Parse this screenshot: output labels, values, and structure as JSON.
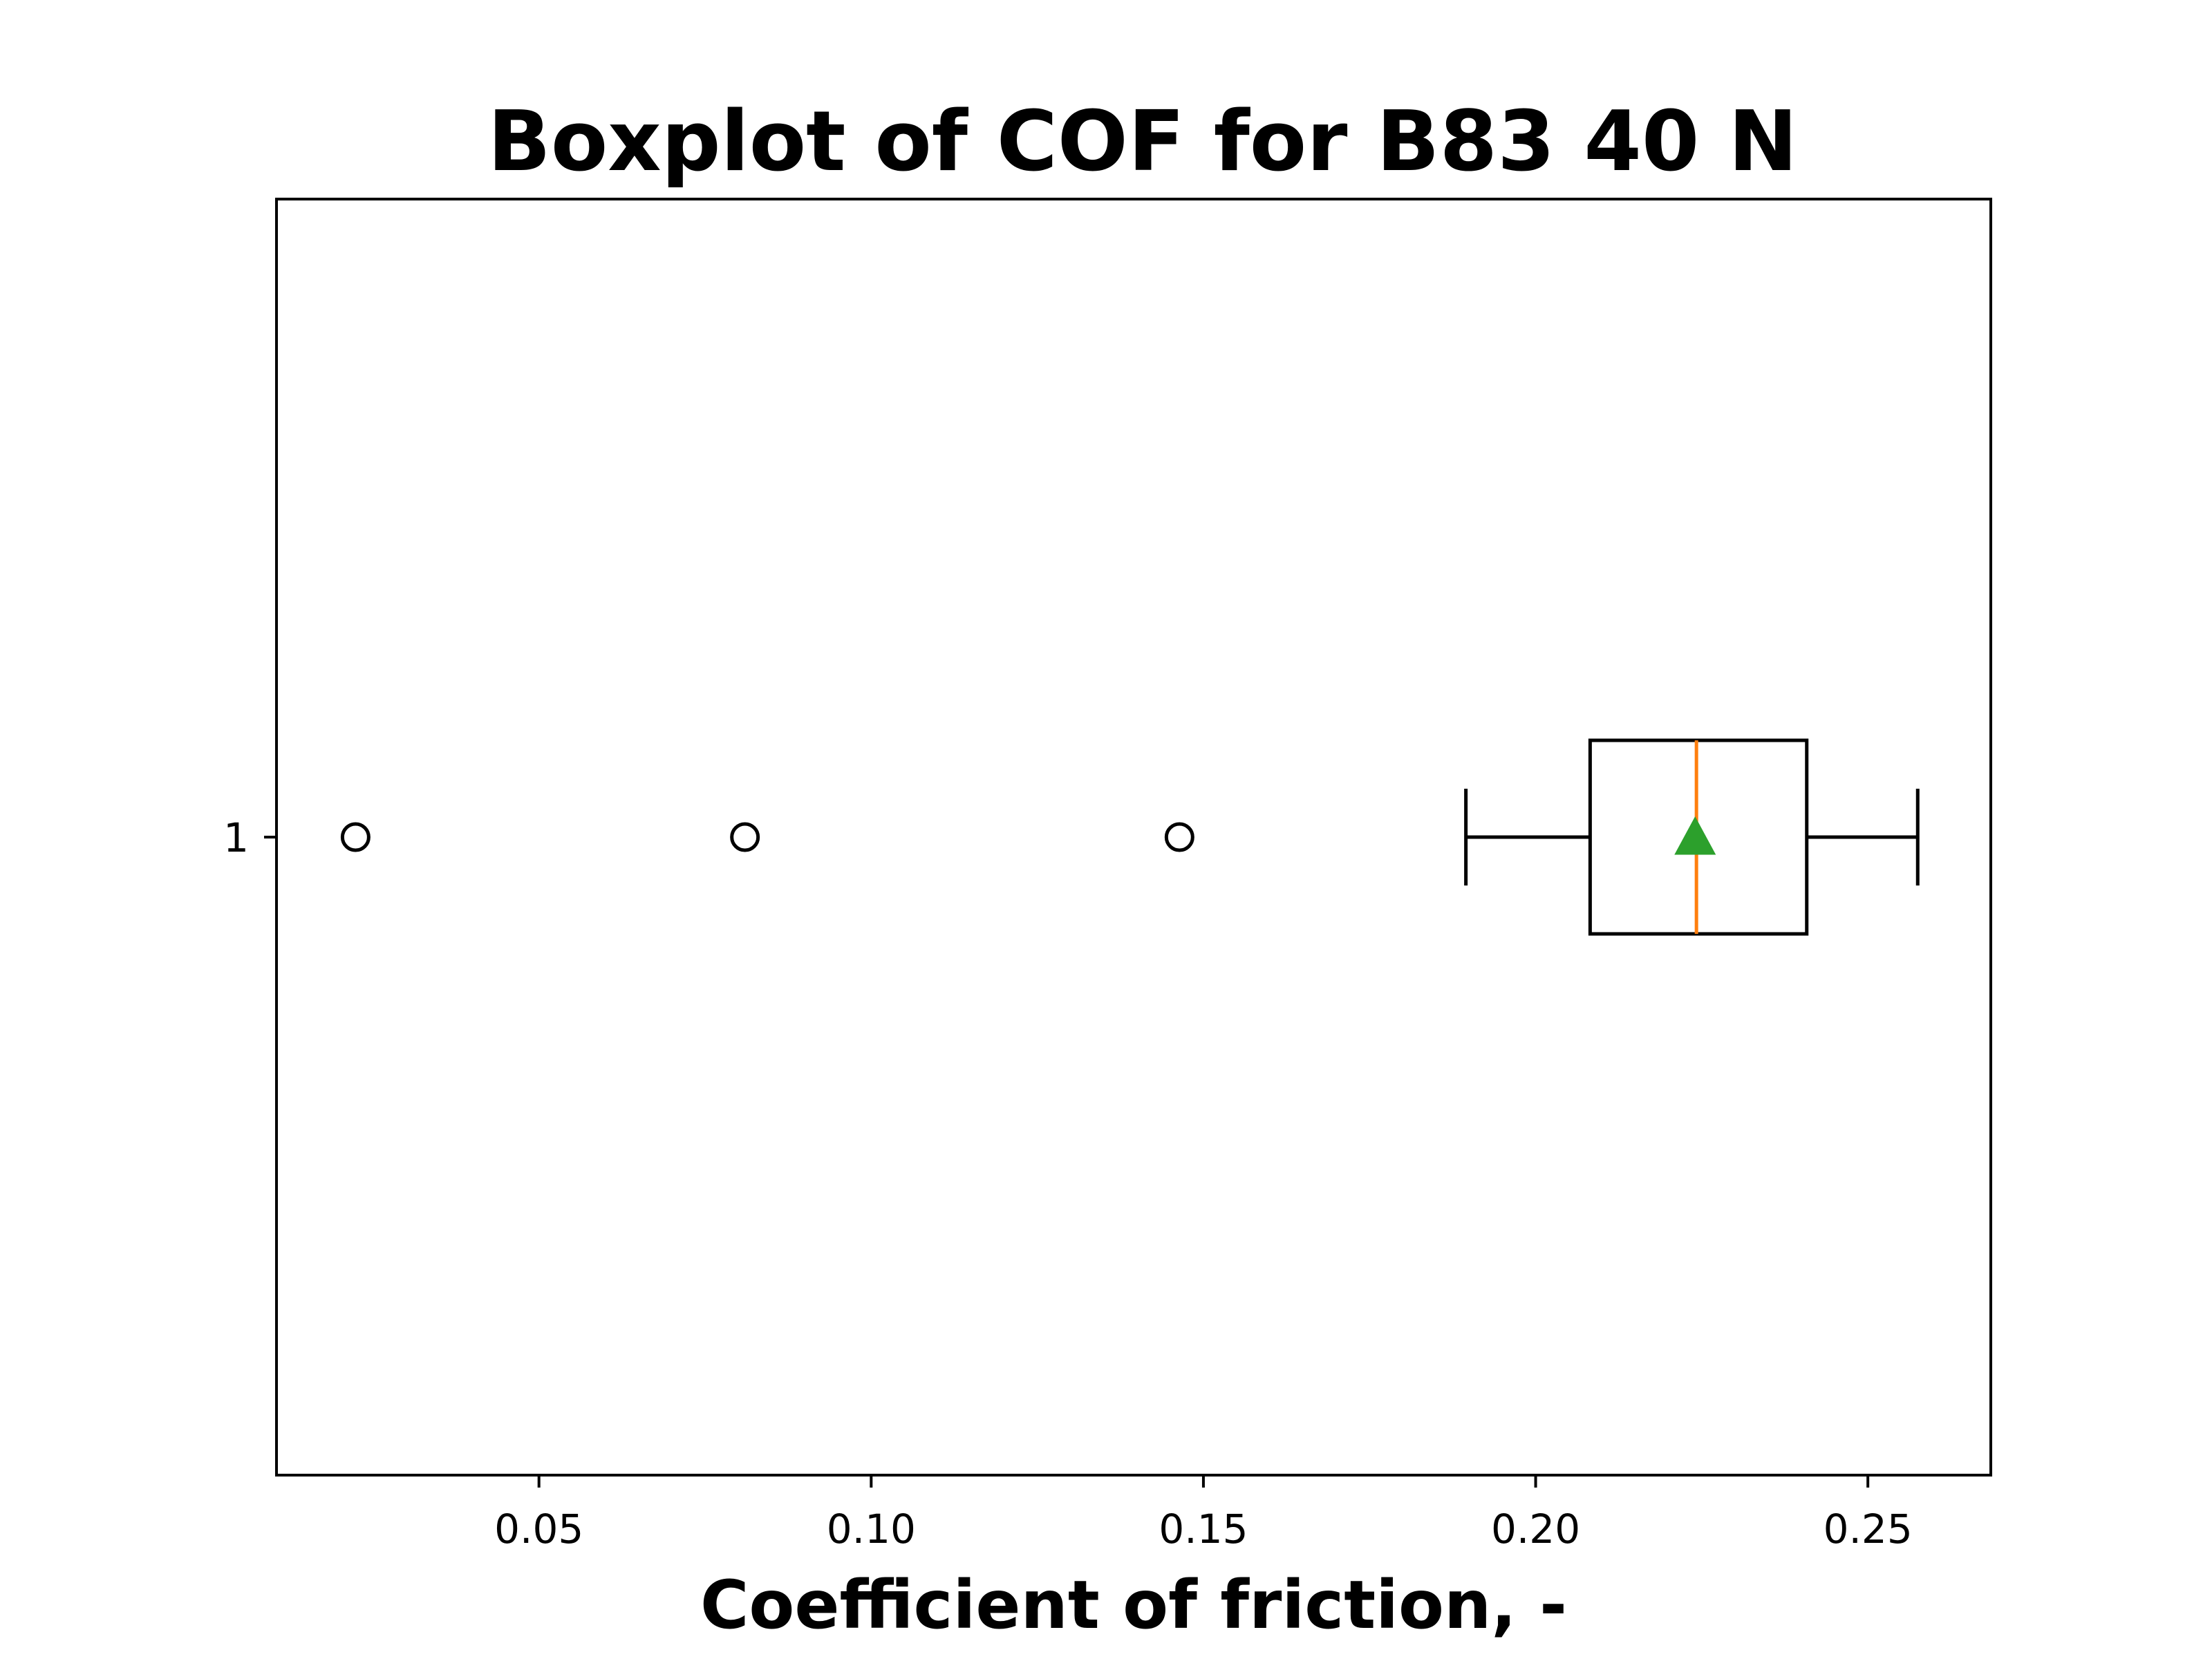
{
  "chart_data": {
    "type": "boxplot",
    "orientation": "horizontal",
    "title": "Boxplot of COF for B83 40 N",
    "xlabel": "Coefficient of friction, -",
    "ylabel": "",
    "xlim": [
      0.0105,
      0.2685
    ],
    "x_ticks": [
      0.05,
      0.1,
      0.15,
      0.2,
      0.25
    ],
    "x_tick_labels": [
      "0.05",
      "0.10",
      "0.15",
      "0.20",
      "0.25"
    ],
    "categories": [
      "1"
    ],
    "boxes": [
      {
        "category": "1",
        "whisker_low": 0.1895,
        "q1": 0.2082,
        "median": 0.2242,
        "q3": 0.2408,
        "whisker_high": 0.2575,
        "mean": 0.224,
        "outliers": [
          0.0224,
          0.081,
          0.1464
        ]
      }
    ],
    "colors": {
      "box": "#000000",
      "median": "#ff7f0e",
      "mean": "#2ca02c",
      "outlier": "#000000"
    },
    "grid": false,
    "legend": "none"
  }
}
